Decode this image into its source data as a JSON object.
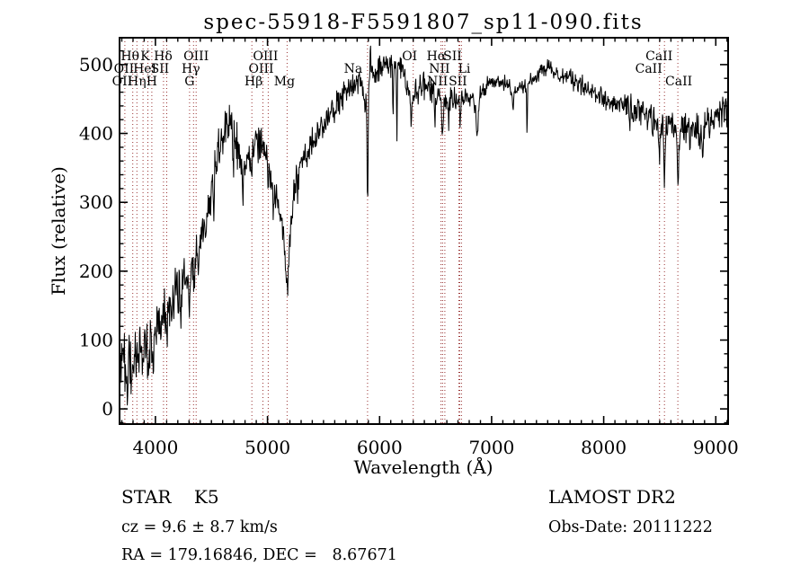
{
  "title": "spec-55918-F5591807_sp11-090.fits",
  "axes": {
    "x": {
      "label": "Wavelength (Å)",
      "min": 3680,
      "max": 9110,
      "major_ticks": [
        4000,
        5000,
        6000,
        7000,
        8000,
        9000
      ],
      "minor_step": 100
    },
    "y": {
      "label": "Flux (relative)",
      "min": -22,
      "max": 539,
      "major_ticks": [
        0,
        100,
        200,
        300,
        400,
        500
      ],
      "minor_step": 20
    }
  },
  "annotations": {
    "class_label": "STAR    K5",
    "survey": "LAMOST DR2",
    "cz": "cz = 9.6 ± 8.7 km/s",
    "obs_date": "Obs-Date: 20111222",
    "ra_dec": "RA = 179.16846, DEC =   8.67671"
  },
  "colors": {
    "spectrum": "#000000",
    "marker_line": "#993333",
    "frame": "#000000",
    "text": "#000000"
  },
  "chart_data": {
    "type": "line",
    "title": "spec-55918-F5591807_sp11-090.fits",
    "xlabel": "Wavelength (Å)",
    "ylabel": "Flux (relative)",
    "xlim": [
      3680,
      9110
    ],
    "ylim": [
      -22,
      539
    ],
    "x_major_ticks": [
      4000,
      5000,
      6000,
      7000,
      8000,
      9000
    ],
    "x_minor_step": 100,
    "y_major_ticks": [
      0,
      100,
      200,
      300,
      400,
      500
    ],
    "y_minor_step": 20,
    "series_name": "spectrum-flux",
    "sample_step_angstrom": 4.2,
    "noise_seed": 20111222,
    "continuum_points": [
      [
        3690,
        55
      ],
      [
        3715,
        80
      ],
      [
        3740,
        58
      ],
      [
        3770,
        62
      ],
      [
        3800,
        60
      ],
      [
        3830,
        86
      ],
      [
        3860,
        74
      ],
      [
        3890,
        82
      ],
      [
        3920,
        80
      ],
      [
        3950,
        88
      ],
      [
        3980,
        96
      ],
      [
        4010,
        116
      ],
      [
        4060,
        132
      ],
      [
        4110,
        150
      ],
      [
        4160,
        163
      ],
      [
        4210,
        183
      ],
      [
        4260,
        196
      ],
      [
        4310,
        198
      ],
      [
        4360,
        218
      ],
      [
        4410,
        242
      ],
      [
        4460,
        280
      ],
      [
        4510,
        325
      ],
      [
        4560,
        370
      ],
      [
        4610,
        400
      ],
      [
        4660,
        416
      ],
      [
        4710,
        400
      ],
      [
        4755,
        362
      ],
      [
        4800,
        344
      ],
      [
        4850,
        374
      ],
      [
        4900,
        389
      ],
      [
        4950,
        381
      ],
      [
        5000,
        352
      ],
      [
        5050,
        322
      ],
      [
        5100,
        290
      ],
      [
        5150,
        260
      ],
      [
        5185,
        238
      ],
      [
        5220,
        295
      ],
      [
        5270,
        344
      ],
      [
        5320,
        363
      ],
      [
        5370,
        376
      ],
      [
        5420,
        389
      ],
      [
        5470,
        403
      ],
      [
        5520,
        416
      ],
      [
        5570,
        429
      ],
      [
        5620,
        443
      ],
      [
        5670,
        456
      ],
      [
        5720,
        465
      ],
      [
        5770,
        471
      ],
      [
        5820,
        475
      ],
      [
        5870,
        470
      ],
      [
        5920,
        481
      ],
      [
        5970,
        489
      ],
      [
        6020,
        497
      ],
      [
        6070,
        498
      ],
      [
        6120,
        493
      ],
      [
        6170,
        495
      ],
      [
        6220,
        489
      ],
      [
        6270,
        463
      ],
      [
        6320,
        459
      ],
      [
        6370,
        467
      ],
      [
        6420,
        469
      ],
      [
        6470,
        459
      ],
      [
        6520,
        451
      ],
      [
        6570,
        441
      ],
      [
        6620,
        447
      ],
      [
        6670,
        451
      ],
      [
        6720,
        445
      ],
      [
        6770,
        453
      ],
      [
        6820,
        453
      ],
      [
        6870,
        441
      ],
      [
        6920,
        461
      ],
      [
        6970,
        471
      ],
      [
        7020,
        477
      ],
      [
        7070,
        478
      ],
      [
        7120,
        473
      ],
      [
        7170,
        466
      ],
      [
        7220,
        463
      ],
      [
        7270,
        469
      ],
      [
        7320,
        471
      ],
      [
        7370,
        479
      ],
      [
        7420,
        487
      ],
      [
        7470,
        493
      ],
      [
        7520,
        495
      ],
      [
        7570,
        489
      ],
      [
        7620,
        483
      ],
      [
        7670,
        484
      ],
      [
        7720,
        480
      ],
      [
        7770,
        474
      ],
      [
        7820,
        469
      ],
      [
        7870,
        463
      ],
      [
        7920,
        458
      ],
      [
        7970,
        453
      ],
      [
        8020,
        449
      ],
      [
        8070,
        444
      ],
      [
        8120,
        442
      ],
      [
        8170,
        443
      ],
      [
        8220,
        440
      ],
      [
        8270,
        434
      ],
      [
        8320,
        435
      ],
      [
        8370,
        429
      ],
      [
        8420,
        425
      ],
      [
        8470,
        419
      ],
      [
        8520,
        409
      ],
      [
        8570,
        416
      ],
      [
        8620,
        411
      ],
      [
        8670,
        399
      ],
      [
        8720,
        406
      ],
      [
        8770,
        416
      ],
      [
        8820,
        409
      ],
      [
        8870,
        401
      ],
      [
        8920,
        416
      ],
      [
        8970,
        423
      ],
      [
        9020,
        426
      ],
      [
        9070,
        436
      ],
      [
        9110,
        431
      ]
    ],
    "absorption_features": [
      [
        3750,
        30,
        6
      ],
      [
        3934,
        28,
        5
      ],
      [
        3969,
        24,
        5
      ],
      [
        4046,
        30,
        4
      ],
      [
        4102,
        42,
        6
      ],
      [
        4144,
        40,
        4
      ],
      [
        4227,
        68,
        5
      ],
      [
        4305,
        40,
        9
      ],
      [
        4341,
        26,
        6
      ],
      [
        4384,
        34,
        4
      ],
      [
        4520,
        35,
        4
      ],
      [
        4695,
        68,
        4
      ],
      [
        4780,
        40,
        4
      ],
      [
        4861,
        44,
        6
      ],
      [
        5055,
        42,
        4
      ],
      [
        5175,
        68,
        15
      ],
      [
        5270,
        30,
        4
      ],
      [
        5870,
        40,
        7
      ],
      [
        5893,
        185,
        5
      ],
      [
        6122,
        52,
        4
      ],
      [
        6155,
        92,
        3
      ],
      [
        6283,
        50,
        5
      ],
      [
        6495,
        30,
        4
      ],
      [
        6563,
        42,
        6
      ],
      [
        6617,
        28,
        4
      ],
      [
        6718,
        28,
        4
      ],
      [
        6872,
        36,
        9
      ],
      [
        7188,
        26,
        8
      ],
      [
        7316,
        82,
        3
      ],
      [
        7607,
        20,
        8
      ],
      [
        8230,
        24,
        4
      ],
      [
        8434,
        28,
        4
      ],
      [
        8498,
        58,
        5
      ],
      [
        8542,
        82,
        5
      ],
      [
        8662,
        84,
        5
      ],
      [
        8767,
        36,
        4
      ],
      [
        8882,
        48,
        5
      ],
      [
        8946,
        30,
        4
      ]
    ],
    "emission_spikes": [
      [
        5918,
        56,
        3
      ],
      [
        6005,
        20,
        3
      ],
      [
        9085,
        18,
        4
      ]
    ],
    "noise_profile": [
      [
        3690,
        30
      ],
      [
        3900,
        27
      ],
      [
        4100,
        24
      ],
      [
        4400,
        21
      ],
      [
        4700,
        18
      ],
      [
        5000,
        17
      ],
      [
        5300,
        15
      ],
      [
        5600,
        13
      ],
      [
        5900,
        13
      ],
      [
        6200,
        12
      ],
      [
        6500,
        11
      ],
      [
        6800,
        10
      ],
      [
        7100,
        8
      ],
      [
        7400,
        8
      ],
      [
        7700,
        9
      ],
      [
        8000,
        10
      ],
      [
        8300,
        12
      ],
      [
        8600,
        13
      ],
      [
        8900,
        15
      ],
      [
        9110,
        14
      ]
    ],
    "line_marker_wavelengths": [
      3727,
      3798,
      3835,
      3889,
      3933,
      3968,
      4072,
      4101,
      4305,
      4340,
      4363,
      4861,
      4959,
      5007,
      5175,
      5893,
      6300,
      6548,
      6563,
      6583,
      6708,
      6716,
      6731,
      8498,
      8542,
      8662
    ],
    "line_labels": [
      {
        "label": "Hθ",
        "wavelength": 3798,
        "row": 1,
        "dx": -3
      },
      {
        "label": "K",
        "wavelength": 3933,
        "row": 1,
        "dx": -3
      },
      {
        "label": "Hδ",
        "wavelength": 4101,
        "row": 1,
        "dx": -4
      },
      {
        "label": "OIII",
        "wavelength": 4363,
        "row": 1,
        "dx": 0
      },
      {
        "label": "OIII",
        "wavelength": 5007,
        "row": 1,
        "dx": -3
      },
      {
        "label": "OI",
        "wavelength": 6300,
        "row": 1,
        "dx": -4
      },
      {
        "label": "Hα",
        "wavelength": 6563,
        "row": 1,
        "dx": -7
      },
      {
        "label": "SII",
        "wavelength": 6716,
        "row": 1,
        "dx": -8
      },
      {
        "label": "CaII",
        "wavelength": 8542,
        "row": 1,
        "dx": -6
      },
      {
        "label": "OII",
        "wavelength": 3727,
        "row": 2,
        "dx": -1
      },
      {
        "label": "HeI",
        "wavelength": 3889,
        "row": 2,
        "dx": 2
      },
      {
        "label": "SII",
        "wavelength": 4072,
        "row": 2,
        "dx": -4
      },
      {
        "label": "Hγ",
        "wavelength": 4340,
        "row": 2,
        "dx": -3
      },
      {
        "label": "OIII",
        "wavelength": 4959,
        "row": 2,
        "dx": -2
      },
      {
        "label": "Na",
        "wavelength": 5893,
        "row": 2,
        "dx": -16
      },
      {
        "label": "NII",
        "wavelength": 6583,
        "row": 2,
        "dx": -6
      },
      {
        "label": "Li",
        "wavelength": 6708,
        "row": 2,
        "dx": 6
      },
      {
        "label": "CaII",
        "wavelength": 8498,
        "row": 2,
        "dx": -12
      },
      {
        "label": "OII",
        "wavelength": 3727,
        "row": 3,
        "dx": -3
      },
      {
        "label": "Hη",
        "wavelength": 3835,
        "row": 3,
        "dx": 0
      },
      {
        "label": "H",
        "wavelength": 3968,
        "row": 3,
        "dx": 0
      },
      {
        "label": "G",
        "wavelength": 4305,
        "row": 3,
        "dx": 0
      },
      {
        "label": "Hβ",
        "wavelength": 4861,
        "row": 3,
        "dx": 2
      },
      {
        "label": "Mg",
        "wavelength": 5175,
        "row": 3,
        "dx": -3
      },
      {
        "label": "NII",
        "wavelength": 6548,
        "row": 3,
        "dx": -4
      },
      {
        "label": "SII",
        "wavelength": 6731,
        "row": 3,
        "dx": -4
      },
      {
        "label": "CaII",
        "wavelength": 8662,
        "row": 3,
        "dx": 1
      }
    ]
  }
}
